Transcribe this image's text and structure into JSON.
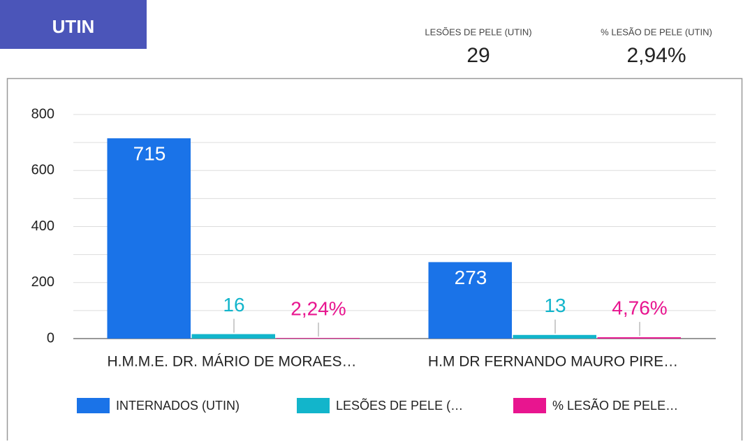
{
  "header": {
    "title": "UTIN"
  },
  "scorecards": [
    {
      "label": "LESÕES DE PELE (UTIN)",
      "value": "29"
    },
    {
      "label": "% LESÃO DE PELE (UTIN)",
      "value": "2,94%"
    }
  ],
  "chart_data": {
    "type": "bar",
    "categories": [
      "H.M.M.E. DR. MÁRIO DE MORAES…",
      "H.M DR FERNANDO MAURO PIRE…"
    ],
    "series": [
      {
        "name": "INTERNADOS (UTIN)",
        "color": "#1a73e8",
        "values": [
          715,
          273
        ]
      },
      {
        "name": "LESÕES DE PELE (…",
        "color": "#12b5cb",
        "values": [
          16,
          13
        ]
      },
      {
        "name": "% LESÃO DE PELE…",
        "color": "#e8158f",
        "values": [
          2.24,
          4.76
        ],
        "value_labels": [
          "2,24%",
          "4,76%"
        ]
      }
    ],
    "ylim": [
      0,
      800
    ],
    "yticks": [
      0,
      200,
      400,
      600,
      800
    ],
    "minor_yticks": [
      100,
      300,
      500,
      700
    ],
    "grid": true,
    "legend": "bottom"
  }
}
